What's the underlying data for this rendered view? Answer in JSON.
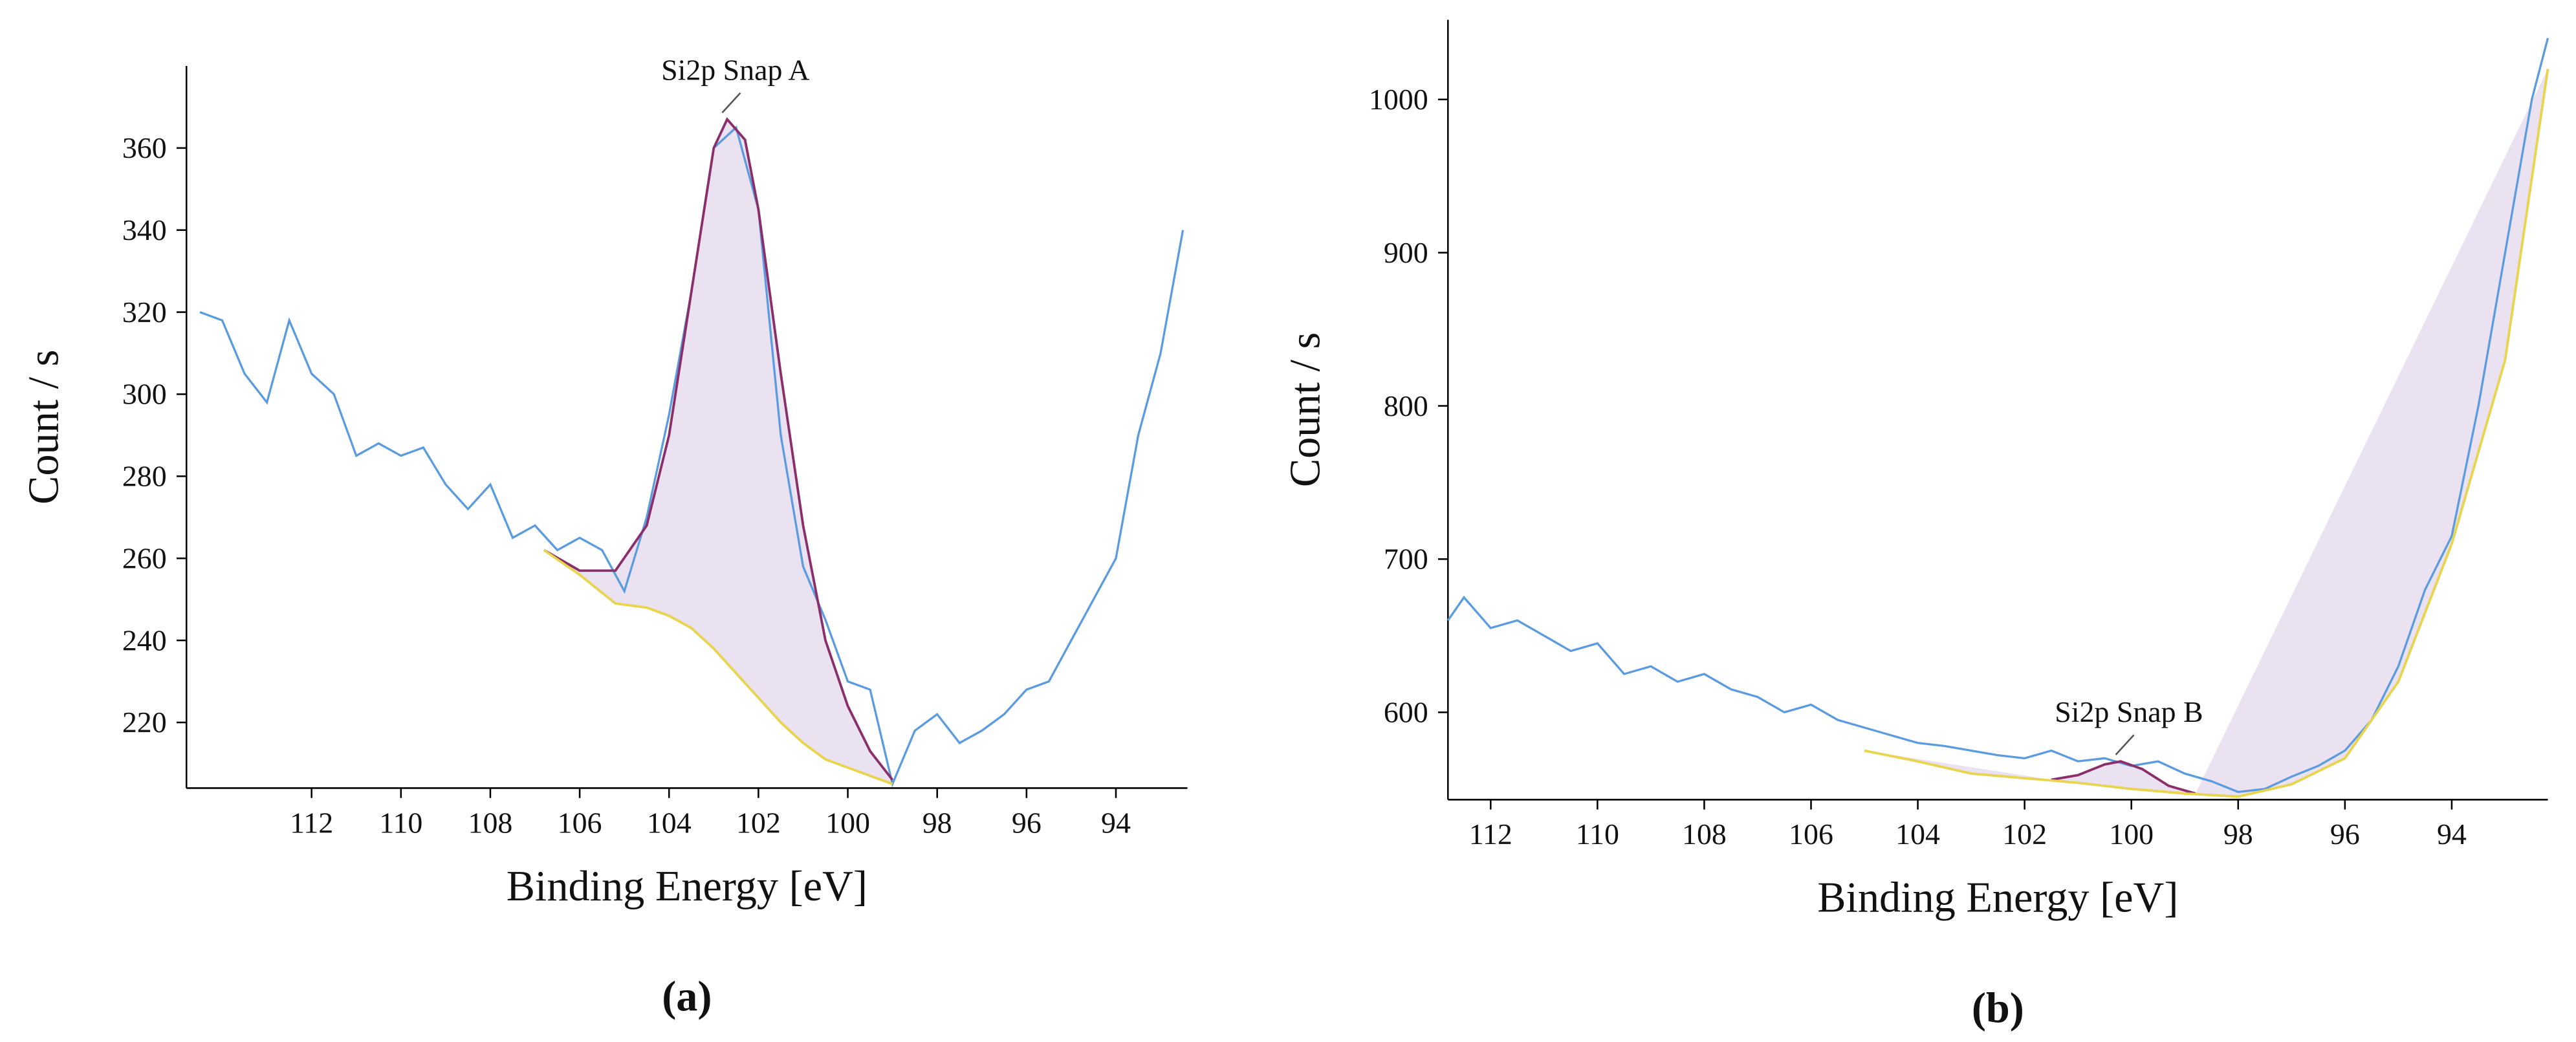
{
  "chart_data": [
    {
      "type": "line",
      "label": "(a)",
      "xlabel": "Binding Energy [eV]",
      "ylabel": "Count / s",
      "annotation": "Si2p Snap A",
      "xlim": [
        114.8,
        92.4
      ],
      "xticks": [
        112,
        110,
        108,
        106,
        104,
        102,
        100,
        98,
        96,
        94
      ],
      "ylim": [
        204,
        380
      ],
      "yticks": [
        220,
        240,
        260,
        280,
        300,
        320,
        340,
        360
      ],
      "fill": "#d9c8e6",
      "series": [
        {
          "color": "#5b9bdf",
          "x": [
            114.5,
            114,
            113.5,
            113,
            112.5,
            112,
            111.5,
            111,
            110.5,
            110,
            109.5,
            109,
            108.5,
            108,
            107.5,
            107,
            106.5,
            106,
            105.5,
            105,
            104.5,
            104,
            103.5,
            103,
            102.5,
            102,
            101.5,
            101,
            100.5,
            100,
            99.5,
            99,
            98.5,
            98,
            97.5,
            97,
            96.5,
            96,
            95.5,
            95,
            94.5,
            94,
            93.5,
            93,
            92.5
          ],
          "values": [
            320,
            318,
            305,
            298,
            318,
            305,
            300,
            285,
            288,
            285,
            287,
            278,
            272,
            278,
            265,
            268,
            262,
            265,
            262,
            252,
            270,
            295,
            325,
            360,
            365,
            345,
            290,
            258,
            245,
            230,
            228,
            205,
            218,
            222,
            215,
            218,
            222,
            228,
            230,
            240,
            250,
            260,
            290,
            310,
            340
          ]
        },
        {
          "color": "#8b2f6b",
          "x": [
            106.8,
            106,
            105.2,
            104.5,
            104,
            103.5,
            103,
            102.7,
            102.3,
            102,
            101.5,
            101,
            100.5,
            100,
            99.5,
            99
          ],
          "values": [
            262,
            257,
            257,
            268,
            290,
            325,
            360,
            367,
            362,
            345,
            305,
            268,
            240,
            224,
            213,
            206
          ]
        },
        {
          "color": "#e8d44d",
          "x": [
            106.8,
            106,
            105.2,
            104.5,
            104,
            103.5,
            103,
            102.5,
            102,
            101.5,
            101,
            100.5,
            100,
            99.5,
            99
          ],
          "values": [
            262,
            256,
            249,
            248,
            246,
            243,
            238,
            232,
            226,
            220,
            215,
            211,
            209,
            207,
            205
          ]
        }
      ]
    },
    {
      "type": "line",
      "label": "(b)",
      "xlabel": "Binding Energy [eV]",
      "ylabel": "Count / s",
      "annotation": "Si2p Snap B",
      "xlim": [
        112.8,
        92.2
      ],
      "xticks": [
        112,
        110,
        108,
        106,
        104,
        102,
        100,
        98,
        96,
        94
      ],
      "ylim": [
        543,
        1052
      ],
      "yticks": [
        600,
        700,
        800,
        900,
        1000
      ],
      "fill": "#d9c8e6",
      "series": [
        {
          "color": "#5b9bdf",
          "x": [
            112.8,
            112.5,
            112,
            111.5,
            111,
            110.5,
            110,
            109.5,
            109,
            108.5,
            108,
            107.5,
            107,
            106.5,
            106,
            105.5,
            105,
            104.5,
            104,
            103.5,
            103,
            102.5,
            102,
            101.5,
            101,
            100.5,
            100,
            99.5,
            99,
            98.5,
            98,
            97.5,
            97,
            96.5,
            96,
            95.5,
            95,
            94.5,
            94,
            93.5,
            93,
            92.5,
            92.2
          ],
          "values": [
            660,
            675,
            655,
            660,
            650,
            640,
            645,
            625,
            630,
            620,
            625,
            615,
            610,
            600,
            605,
            595,
            590,
            585,
            580,
            578,
            575,
            572,
            570,
            575,
            568,
            570,
            565,
            568,
            560,
            555,
            548,
            550,
            558,
            565,
            575,
            595,
            630,
            680,
            715,
            800,
            900,
            1000,
            1040
          ]
        },
        {
          "color": "#8b2f6b",
          "x": [
            101.5,
            101,
            100.5,
            100.2,
            99.8,
            99.3,
            98.8
          ],
          "values": [
            556,
            559,
            566,
            568,
            563,
            552,
            547
          ]
        },
        {
          "color": "#e8d44d",
          "x": [
            105,
            104,
            103,
            102,
            101,
            100,
            99,
            98,
            97,
            96,
            95,
            94,
            93,
            92.2
          ],
          "values": [
            575,
            568,
            560,
            557,
            554,
            550,
            547,
            545,
            553,
            570,
            620,
            710,
            830,
            1020
          ]
        }
      ]
    }
  ]
}
